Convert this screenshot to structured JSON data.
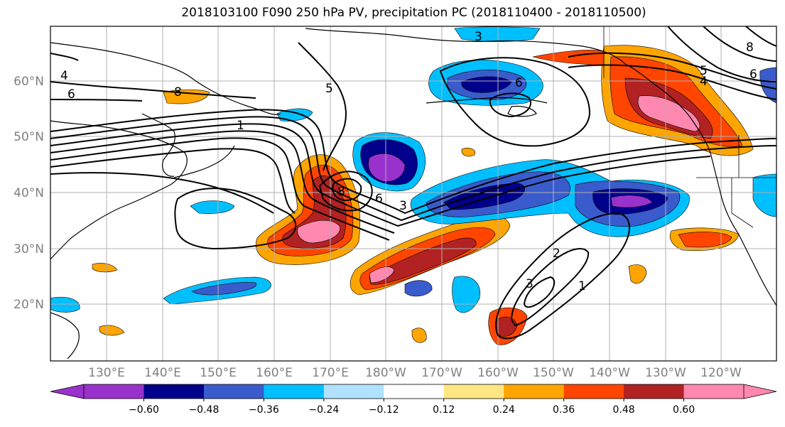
{
  "title": "2018103100 F090 250 hPa PV, precipitation PC (2018110400 - 2018110500)",
  "map": {
    "lat_labels": [
      "60°N",
      "50°N",
      "40°N",
      "30°N",
      "20°N"
    ],
    "lon_labels": [
      "130°E",
      "140°E",
      "150°E",
      "160°E",
      "170°E",
      "180°W",
      "170°W",
      "160°W",
      "150°W",
      "140°W",
      "130°W",
      "120°W"
    ],
    "grid": true,
    "field_colors": {
      "neg_strong": "#9932cc",
      "neg_3": "#00008b",
      "neg_2": "#3a5bcc",
      "neg_1": "#00bfff",
      "neg_0": "#b0e2ff",
      "pos_0": "#ffe680",
      "pos_1": "#ffa500",
      "pos_2": "#ff4500",
      "pos_3": "#b22222",
      "pos_strong": "#ff88b0"
    }
  },
  "contour_labels": [
    "1",
    "2",
    "3",
    "4",
    "5",
    "6",
    "8"
  ],
  "colorbar": {
    "colors": [
      "#9932cc",
      "#00008b",
      "#3a5bcc",
      "#00bfff",
      "#b0e2ff",
      "#ffffff",
      "#ffe680",
      "#ffa500",
      "#ff4500",
      "#b22222",
      "#ff88b0"
    ],
    "ticks": [
      "−0.60",
      "−0.48",
      "−0.36",
      "−0.24",
      "−0.12",
      "0.12",
      "0.24",
      "0.36",
      "0.48",
      "0.60"
    ]
  }
}
